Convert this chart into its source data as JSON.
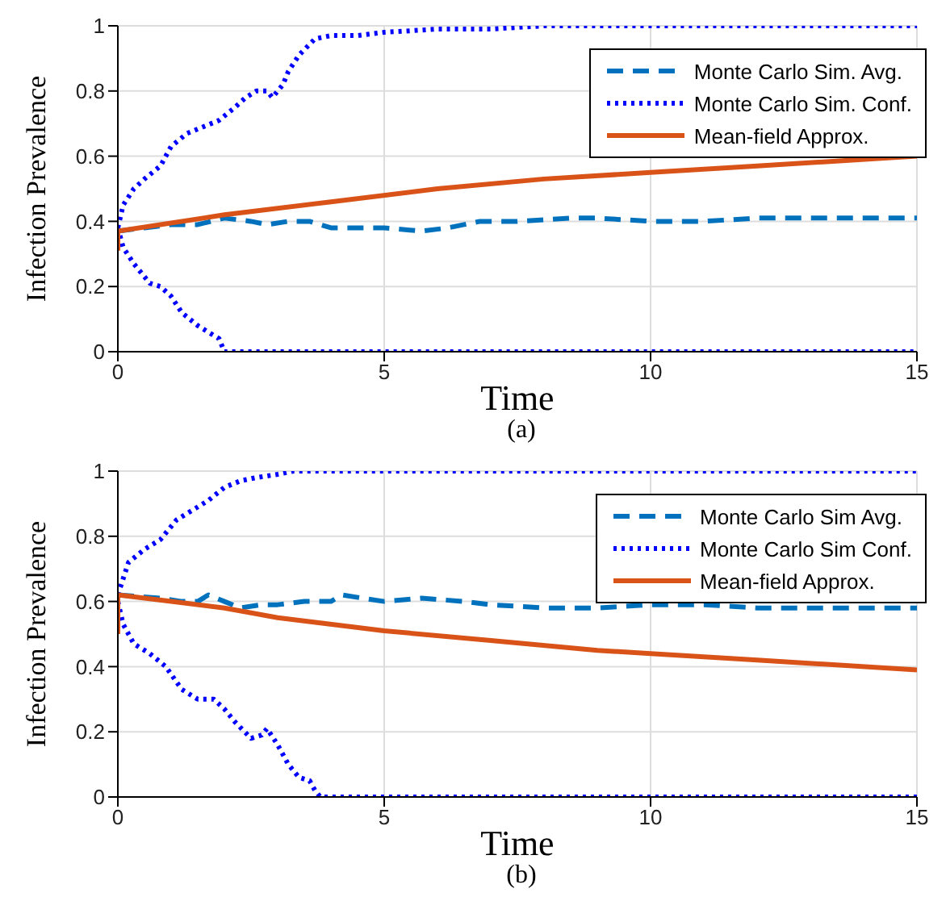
{
  "chart_data": [
    {
      "type": "line",
      "xlabel": "Time",
      "ylabel": "Infection Prevalence",
      "annotations": [
        "(a)"
      ],
      "xlim": [
        0,
        15
      ],
      "xticks": [
        0,
        5,
        10,
        15
      ],
      "ylim": [
        0,
        1
      ],
      "yticks": [
        0,
        0.2,
        0.4,
        0.6,
        0.8,
        1
      ],
      "grid": true,
      "legend": "top right",
      "series": [
        {
          "name": "Monte Carlo Sim. Avg.",
          "color": "#0072bd",
          "line_style": "dashed",
          "x": [
            0,
            0.5,
            1,
            1.5,
            2,
            2.5,
            2.8,
            3.2,
            3.6,
            4,
            4.5,
            5,
            5.7,
            6.2,
            6.8,
            7.5,
            8.5,
            9,
            10,
            11,
            12,
            13,
            14,
            15
          ],
          "values": [
            0.37,
            0.38,
            0.39,
            0.39,
            0.41,
            0.4,
            0.39,
            0.4,
            0.4,
            0.38,
            0.38,
            0.38,
            0.37,
            0.38,
            0.4,
            0.4,
            0.41,
            0.41,
            0.4,
            0.4,
            0.41,
            0.41,
            0.41,
            0.41
          ]
        },
        {
          "name": "Monte Carlo Sim. Conf.",
          "color": "#0000ff",
          "line_style": "dotted",
          "x": [
            0,
            0.1,
            0.3,
            0.5,
            0.8,
            1,
            1.3,
            1.6,
            1.9,
            2.2,
            2.4,
            2.6,
            2.8,
            2.9,
            3.1,
            3.2,
            3.4,
            3.7,
            4,
            4.5,
            5,
            6,
            7,
            8,
            10,
            15
          ],
          "values": [
            0.38,
            0.45,
            0.5,
            0.53,
            0.57,
            0.63,
            0.67,
            0.69,
            0.71,
            0.75,
            0.78,
            0.8,
            0.8,
            0.78,
            0.82,
            0.86,
            0.91,
            0.96,
            0.97,
            0.97,
            0.98,
            0.99,
            0.99,
            1,
            1,
            1
          ]
        },
        {
          "color": "#0000ff",
          "line_style": "dotted",
          "x": [
            0,
            0.1,
            0.3,
            0.6,
            0.8,
            1,
            1.2,
            1.5,
            1.7,
            1.9,
            2,
            15
          ],
          "values": [
            0.38,
            0.32,
            0.27,
            0.21,
            0.2,
            0.17,
            0.12,
            0.08,
            0.06,
            0.04,
            0,
            0
          ]
        },
        {
          "name": "Mean-field Approx.",
          "color": "#d95319",
          "line_style": "solid",
          "x": [
            0,
            0,
            2,
            4,
            6,
            8,
            10,
            12,
            15
          ],
          "values": [
            0.31,
            0.37,
            0.42,
            0.46,
            0.5,
            0.53,
            0.55,
            0.57,
            0.6
          ]
        }
      ]
    },
    {
      "type": "line",
      "xlabel": "Time",
      "ylabel": "Infection Prevalence",
      "annotations": [
        "(b)"
      ],
      "xlim": [
        0,
        15
      ],
      "xticks": [
        0,
        5,
        10,
        15
      ],
      "ylim": [
        0,
        1
      ],
      "yticks": [
        0,
        0.2,
        0.4,
        0.6,
        0.8,
        1
      ],
      "grid": true,
      "legend": "top right",
      "series": [
        {
          "name": "Monte Carlo Sim Avg.",
          "color": "#0072bd",
          "line_style": "dashed",
          "x": [
            0,
            0.8,
            1.2,
            1.5,
            1.7,
            2,
            2.3,
            2.7,
            3,
            3.5,
            4,
            4.2,
            5,
            5.7,
            6.5,
            7,
            8,
            9,
            10,
            11,
            12,
            13,
            14,
            15
          ],
          "values": [
            0.62,
            0.61,
            0.6,
            0.6,
            0.62,
            0.6,
            0.58,
            0.59,
            0.59,
            0.6,
            0.6,
            0.62,
            0.6,
            0.61,
            0.6,
            0.59,
            0.58,
            0.58,
            0.59,
            0.59,
            0.58,
            0.58,
            0.58,
            0.58
          ]
        },
        {
          "name": "Monte Carlo Sim Conf.",
          "color": "#0000ff",
          "line_style": "dotted",
          "x": [
            0,
            0.2,
            0.5,
            0.8,
            1.1,
            1.4,
            1.7,
            2,
            2.3,
            2.6,
            3,
            3.3,
            15
          ],
          "values": [
            0.62,
            0.72,
            0.76,
            0.79,
            0.85,
            0.88,
            0.91,
            0.95,
            0.97,
            0.98,
            0.99,
            1,
            1
          ]
        },
        {
          "color": "#0000ff",
          "line_style": "dotted",
          "x": [
            0,
            0.1,
            0.3,
            0.6,
            0.9,
            1.2,
            1.5,
            1.8,
            2,
            2.2,
            2.5,
            2.7,
            2.8,
            3,
            3.2,
            3.4,
            3.6,
            3.7,
            3.8,
            15
          ],
          "values": [
            0.6,
            0.53,
            0.47,
            0.44,
            0.4,
            0.33,
            0.3,
            0.3,
            0.27,
            0.23,
            0.18,
            0.19,
            0.21,
            0.16,
            0.1,
            0.06,
            0.05,
            0.02,
            0,
            0
          ]
        },
        {
          "name": "Mean-field Approx.",
          "color": "#d95319",
          "line_style": "solid",
          "x": [
            0,
            0,
            1,
            2,
            3,
            5,
            7,
            9,
            10,
            12,
            15
          ],
          "values": [
            0.5,
            0.62,
            0.6,
            0.58,
            0.55,
            0.51,
            0.48,
            0.45,
            0.44,
            0.42,
            0.39
          ]
        }
      ]
    }
  ]
}
